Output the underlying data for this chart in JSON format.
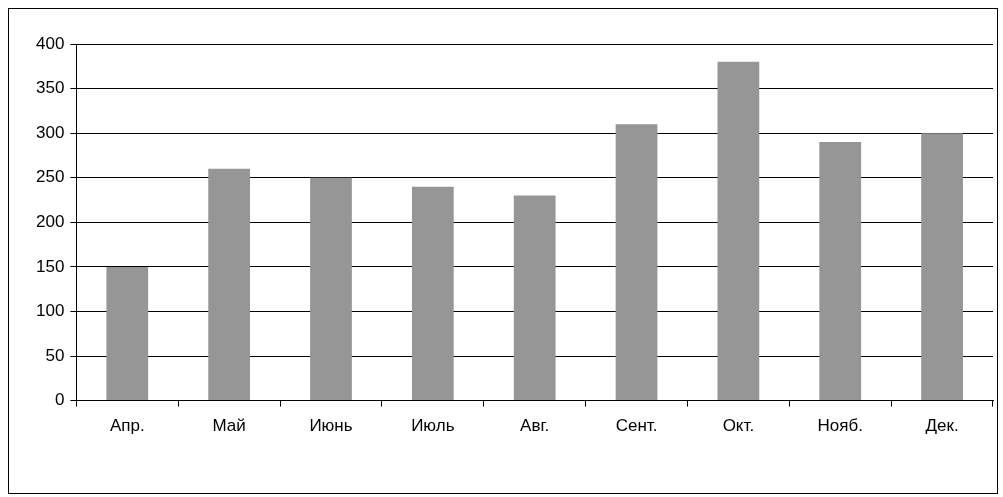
{
  "chart_data": {
    "type": "bar",
    "categories": [
      "Апр.",
      "Май",
      "Июнь",
      "Июль",
      "Авг.",
      "Сент.",
      "Окт.",
      "Нояб.",
      "Дек."
    ],
    "values": [
      150,
      260,
      250,
      240,
      230,
      310,
      380,
      290,
      300
    ],
    "color": "#969696",
    "ylim": [
      0,
      400
    ],
    "yticks": [
      0,
      50,
      100,
      150,
      200,
      250,
      300,
      350,
      400
    ],
    "grid": "y",
    "legend": false
  }
}
